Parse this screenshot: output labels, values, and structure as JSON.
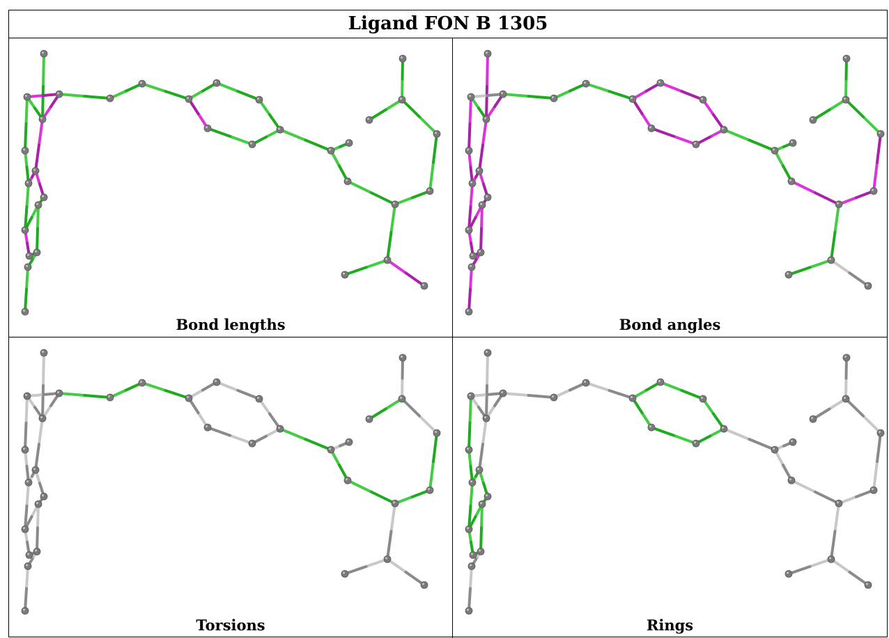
{
  "title": "Ligand FON B 1305",
  "panels": [
    {
      "id": "bond-lengths",
      "label": "Bond lengths"
    },
    {
      "id": "bond-angles",
      "label": "Bond angles"
    },
    {
      "id": "torsions",
      "label": "Torsions"
    },
    {
      "id": "rings",
      "label": "Rings"
    }
  ],
  "colors": {
    "good": "#44cc44",
    "good_dark": "#1faa1f",
    "outlier": "#dd33dd",
    "outlier_dark": "#a822a8",
    "neutral": "#c8c8c8",
    "neutral_dark": "#8a8a8a",
    "atom": "#7a7a7a"
  }
}
